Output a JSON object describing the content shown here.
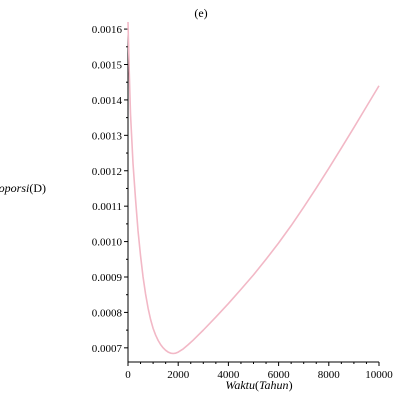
{
  "chart_data": {
    "type": "line",
    "title": "(e)",
    "xlabel": {
      "name": "Waktu",
      "open": "(",
      "unit": "Tahun",
      "close": ")"
    },
    "ylabel": {
      "name": "Proporsi",
      "open": "(",
      "var": "D",
      "close": ")"
    },
    "xlim": [
      0,
      10000
    ],
    "ylim": [
      0.00066,
      0.00162
    ],
    "x_ticks": [
      0,
      2000,
      4000,
      6000,
      8000,
      10000
    ],
    "x_tick_labels": [
      "0",
      "2000",
      "4000",
      "6000",
      "8000",
      "10000"
    ],
    "y_ticks": [
      0.0007,
      0.0008,
      0.0009,
      0.001,
      0.0011,
      0.0012,
      0.0013,
      0.0014,
      0.0015,
      0.0016
    ],
    "y_tick_labels": [
      "0.0007",
      "0.0008",
      "0.0009",
      "0.0010",
      "0.0011",
      "0.0012",
      "0.0013",
      "0.0014",
      "0.0015",
      "0.0016"
    ],
    "grid": false,
    "series": [
      {
        "color": "#f2b8c6",
        "x": [
          0,
          50,
          100,
          200,
          300,
          400,
          500,
          600,
          700,
          800,
          900,
          1000,
          1100,
          1200,
          1300,
          1400,
          1500,
          1600,
          1700,
          1800,
          1900,
          2000,
          2200,
          2400,
          2600,
          2800,
          3000,
          3500,
          4000,
          4500,
          5000,
          5500,
          6000,
          6500,
          7000,
          7500,
          8000,
          8500,
          9000,
          9500,
          10000
        ],
        "y": [
          0.00162,
          0.00148,
          0.00136,
          0.00122,
          0.00112,
          0.00103,
          0.00096,
          0.0009,
          0.000852,
          0.000812,
          0.00078,
          0.000755,
          0.000736,
          0.000721,
          0.000709,
          0.0007,
          0.000693,
          0.000688,
          0.000685,
          0.000684,
          0.000685,
          0.000688,
          0.000697,
          0.000709,
          0.000722,
          0.000736,
          0.00075,
          0.000787,
          0.000825,
          0.000865,
          0.000906,
          0.00095,
          0.000996,
          0.001045,
          0.001097,
          0.001151,
          0.001207,
          0.001264,
          0.001322,
          0.001381,
          0.00144
        ]
      }
    ]
  }
}
